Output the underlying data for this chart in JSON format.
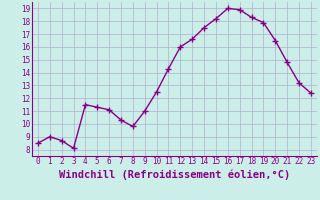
{
  "x": [
    0,
    1,
    2,
    3,
    4,
    5,
    6,
    7,
    8,
    9,
    10,
    11,
    12,
    13,
    14,
    15,
    16,
    17,
    18,
    19,
    20,
    21,
    22,
    23
  ],
  "y": [
    8.5,
    9.0,
    8.7,
    8.1,
    11.5,
    11.3,
    11.1,
    10.3,
    9.8,
    11.0,
    12.5,
    14.3,
    16.0,
    16.6,
    17.5,
    18.2,
    19.0,
    18.9,
    18.3,
    17.9,
    16.5,
    14.8,
    13.2,
    12.4
  ],
  "line_color": "#880088",
  "marker": "+",
  "marker_size": 4,
  "marker_lw": 1.0,
  "xlabel": "Windchill (Refroidissement éolien,°C)",
  "xlabel_fontsize": 7.5,
  "xlim": [
    -0.5,
    23.5
  ],
  "ylim": [
    7.5,
    19.5
  ],
  "yticks": [
    8,
    9,
    10,
    11,
    12,
    13,
    14,
    15,
    16,
    17,
    18,
    19
  ],
  "xticks": [
    0,
    1,
    2,
    3,
    4,
    5,
    6,
    7,
    8,
    9,
    10,
    11,
    12,
    13,
    14,
    15,
    16,
    17,
    18,
    19,
    20,
    21,
    22,
    23
  ],
  "grid_color": "#b0b0cc",
  "bg_color": "#cceee8",
  "tick_fontsize": 5.5,
  "line_width": 1.0,
  "axis_color": "#880088"
}
